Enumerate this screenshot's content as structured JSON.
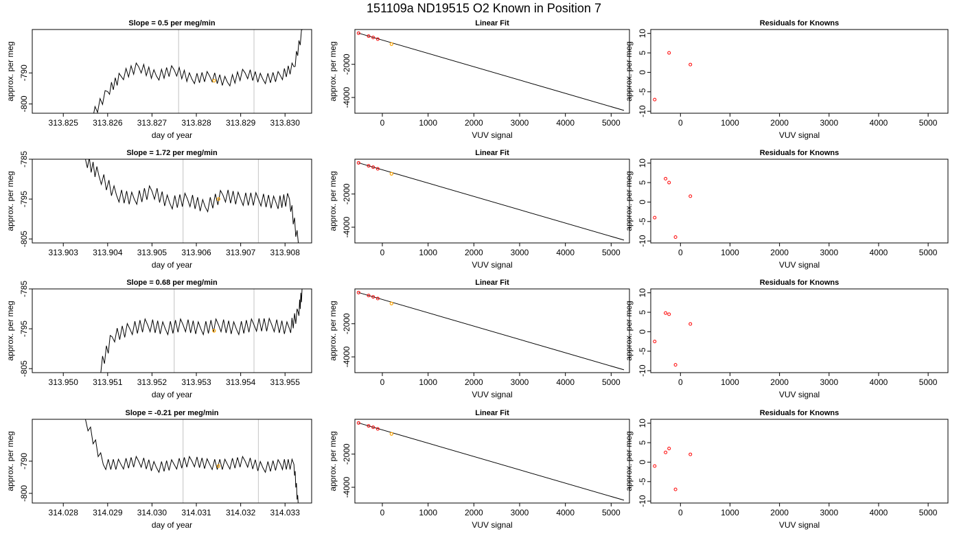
{
  "page_title": "151109a     ND19515   O2 Known in Position  7",
  "colors": {
    "line": "#000000",
    "marker": "#ff0000",
    "highlight": "#ffa500",
    "guide": "#cccccc"
  },
  "chart_data": [
    {
      "type": "line",
      "title": "Slope =  0.5  per meg/min",
      "xlabel": "day of year",
      "ylabel": "approx. per meg",
      "xlim": [
        313.8243,
        313.8306
      ],
      "ylim": [
        -803.0,
        -776.0
      ],
      "xticks": [
        "313.825",
        "313.826",
        "313.827",
        "313.828",
        "313.829",
        "313.830"
      ],
      "yticks": [
        "-800",
        "-790"
      ],
      "vlines": [
        313.8276,
        313.8293
      ],
      "series": [
        {
          "x": [
            313.8256,
            313.826,
            313.8263,
            313.8267,
            313.8271,
            313.8275,
            313.8279,
            313.8283,
            313.8287,
            313.8291,
            313.8295,
            313.8299,
            313.8302,
            313.8304
          ],
          "values": [
            -805,
            -796,
            -791,
            -788,
            -791,
            -789,
            -792,
            -791,
            -793,
            -790,
            -792,
            -791,
            -788,
            -776
          ]
        }
      ],
      "highlight_point": {
        "x": 313.8284,
        "y": -792.5
      }
    },
    {
      "type": "scatter",
      "title": "Linear Fit",
      "xlabel": "VUV signal",
      "ylabel": "approx. per meg",
      "xlim": [
        -600,
        5400
      ],
      "ylim": [
        -4950,
        100
      ],
      "xticks": [
        "0",
        "1000",
        "2000",
        "3000",
        "4000",
        "5000"
      ],
      "yticks": [
        "-4000",
        "-2000"
      ],
      "points": {
        "x": [
          -520,
          -300,
          -200,
          -100
        ],
        "y": [
          -120,
          -300,
          -380,
          -480
        ]
      },
      "highlight_point": {
        "x": 200,
        "y": -780
      },
      "fit_line": {
        "x": [
          -520,
          5280
        ],
        "y": [
          -120,
          -4780
        ]
      }
    },
    {
      "type": "scatter",
      "title": "Residuals for Knowns",
      "xlabel": "VUV signal",
      "ylabel": "approx. per meg",
      "xlim": [
        -600,
        5400
      ],
      "ylim": [
        -10.5,
        11
      ],
      "xticks": [
        "0",
        "1000",
        "2000",
        "3000",
        "4000",
        "5000"
      ],
      "yticks": [
        "-10",
        "-5",
        "0",
        "5",
        "10"
      ],
      "points": {
        "x": [
          -520,
          -230,
          200
        ],
        "y": [
          -7,
          5,
          2
        ]
      }
    },
    {
      "type": "line",
      "title": "Slope =  1.72  per meg/min",
      "xlabel": "day of year",
      "ylabel": "approx. per meg",
      "xlim": [
        313.9023,
        313.9086
      ],
      "ylim": [
        -806,
        -785
      ],
      "xticks": [
        "313.903",
        "313.904",
        "313.905",
        "313.906",
        "313.907",
        "313.908"
      ],
      "yticks": [
        "-805",
        "-795",
        "-785"
      ],
      "vlines": [
        313.9057,
        313.9074
      ],
      "series": [
        {
          "x": [
            313.9035,
            313.9038,
            313.9042,
            313.9046,
            313.905,
            313.9054,
            313.9058,
            313.9062,
            313.9066,
            313.907,
            313.9074,
            313.9078,
            313.9081,
            313.9083
          ],
          "values": [
            -785,
            -789,
            -794,
            -795,
            -793,
            -796,
            -795,
            -797,
            -794,
            -795,
            -795,
            -796,
            -795,
            -806
          ]
        }
      ],
      "highlight_point": {
        "x": 313.9065,
        "y": -795
      }
    },
    {
      "type": "scatter",
      "title": "Linear Fit",
      "xlabel": "VUV signal",
      "ylabel": "approx. per meg",
      "xlim": [
        -600,
        5400
      ],
      "ylim": [
        -4950,
        100
      ],
      "xticks": [
        "0",
        "1000",
        "2000",
        "3000",
        "4000",
        "5000"
      ],
      "yticks": [
        "-4000",
        "-2000"
      ],
      "points": {
        "x": [
          -520,
          -300,
          -200,
          -100
        ],
        "y": [
          -120,
          -300,
          -380,
          -480
        ]
      },
      "highlight_point": {
        "x": 200,
        "y": -780
      },
      "fit_line": {
        "x": [
          -520,
          5280
        ],
        "y": [
          -120,
          -4780
        ]
      }
    },
    {
      "type": "scatter",
      "title": "Residuals for Knowns",
      "xlabel": "VUV signal",
      "ylabel": "approx. per meg",
      "xlim": [
        -600,
        5400
      ],
      "ylim": [
        -10.5,
        11
      ],
      "xticks": [
        "0",
        "1000",
        "2000",
        "3000",
        "4000",
        "5000"
      ],
      "yticks": [
        "-10",
        "-5",
        "0",
        "5",
        "10"
      ],
      "points": {
        "x": [
          -520,
          -300,
          -230,
          -100,
          200
        ],
        "y": [
          -4,
          6,
          5,
          -9,
          1.5
        ]
      }
    },
    {
      "type": "line",
      "title": "Slope =  0.68  per meg/min",
      "xlabel": "day of year",
      "ylabel": "approx. per meg",
      "xlim": [
        313.9493,
        313.9556
      ],
      "ylim": [
        -806,
        -785
      ],
      "xticks": [
        "313.950",
        "313.951",
        "313.952",
        "313.953",
        "313.954",
        "313.955"
      ],
      "yticks": [
        "-805",
        "-795",
        "-785"
      ],
      "vlines": [
        313.9525,
        313.9543
      ],
      "series": [
        {
          "x": [
            313.9508,
            313.9511,
            313.9515,
            313.9519,
            313.9523,
            313.9527,
            313.9531,
            313.9535,
            313.9539,
            313.9543,
            313.9547,
            313.9551,
            313.9553,
            313.9554
          ],
          "values": [
            -806,
            -797,
            -795,
            -794,
            -795,
            -794,
            -795,
            -794,
            -795,
            -794,
            -794,
            -795,
            -791,
            -785
          ]
        }
      ],
      "highlight_point": {
        "x": 313.9534,
        "y": -795.5
      }
    },
    {
      "type": "scatter",
      "title": "Linear Fit",
      "xlabel": "VUV signal",
      "ylabel": "approx. per meg",
      "xlim": [
        -600,
        5400
      ],
      "ylim": [
        -4950,
        100
      ],
      "xticks": [
        "0",
        "1000",
        "2000",
        "3000",
        "4000",
        "5000"
      ],
      "yticks": [
        "-4000",
        "-2000"
      ],
      "points": {
        "x": [
          -520,
          -300,
          -200,
          -100
        ],
        "y": [
          -120,
          -300,
          -380,
          -480
        ]
      },
      "highlight_point": {
        "x": 200,
        "y": -780
      },
      "fit_line": {
        "x": [
          -520,
          5280
        ],
        "y": [
          -120,
          -4780
        ]
      }
    },
    {
      "type": "scatter",
      "title": "Residuals for Knowns",
      "xlabel": "VUV signal",
      "ylabel": "approx. per meg",
      "xlim": [
        -600,
        5400
      ],
      "ylim": [
        -10.5,
        11
      ],
      "xticks": [
        "0",
        "1000",
        "2000",
        "3000",
        "4000",
        "5000"
      ],
      "yticks": [
        "-10",
        "-5",
        "0",
        "5",
        "10"
      ],
      "points": {
        "x": [
          -520,
          -300,
          -230,
          -100,
          200
        ],
        "y": [
          -2.5,
          4.8,
          4.5,
          -8.5,
          2
        ]
      }
    },
    {
      "type": "line",
      "title": "Slope =  -0.21  per meg/min",
      "xlabel": "day of year",
      "ylabel": "approx. per meg",
      "xlim": [
        314.0273,
        314.0336
      ],
      "ylim": [
        -803,
        -777
      ],
      "xticks": [
        "314.028",
        "314.029",
        "314.030",
        "314.031",
        "314.032",
        "314.033"
      ],
      "yticks": [
        "-800",
        "-790"
      ],
      "vlines": [
        314.0307,
        314.0324
      ],
      "series": [
        {
          "x": [
            314.0285,
            314.0289,
            314.0293,
            314.0297,
            314.0301,
            314.0305,
            314.0309,
            314.0313,
            314.0317,
            314.0321,
            314.0325,
            314.0329,
            314.0332,
            314.0333
          ],
          "values": [
            -777,
            -791,
            -791,
            -790,
            -792,
            -791,
            -790,
            -791,
            -791,
            -790,
            -792,
            -791,
            -791,
            -804
          ]
        }
      ],
      "highlight_point": {
        "x": 314.0315,
        "y": -791.5
      }
    },
    {
      "type": "scatter",
      "title": "Linear Fit",
      "xlabel": "VUV signal",
      "ylabel": "approx. per meg",
      "xlim": [
        -600,
        5400
      ],
      "ylim": [
        -4950,
        100
      ],
      "xticks": [
        "0",
        "1000",
        "2000",
        "3000",
        "4000",
        "5000"
      ],
      "yticks": [
        "-4000",
        "-2000"
      ],
      "points": {
        "x": [
          -520,
          -300,
          -200,
          -100
        ],
        "y": [
          -120,
          -300,
          -380,
          -480
        ]
      },
      "highlight_point": {
        "x": 200,
        "y": -780
      },
      "fit_line": {
        "x": [
          -520,
          5280
        ],
        "y": [
          -120,
          -4780
        ]
      }
    },
    {
      "type": "scatter",
      "title": "Residuals for Knowns",
      "xlabel": "VUV signal",
      "ylabel": "approx. per meg",
      "xlim": [
        -600,
        5400
      ],
      "ylim": [
        -10.5,
        11
      ],
      "xticks": [
        "0",
        "1000",
        "2000",
        "3000",
        "4000",
        "5000"
      ],
      "yticks": [
        "-10",
        "-5",
        "0",
        "5",
        "10"
      ],
      "points": {
        "x": [
          -520,
          -300,
          -230,
          -100,
          200
        ],
        "y": [
          -1,
          2.5,
          3.5,
          -7,
          2
        ]
      }
    }
  ]
}
